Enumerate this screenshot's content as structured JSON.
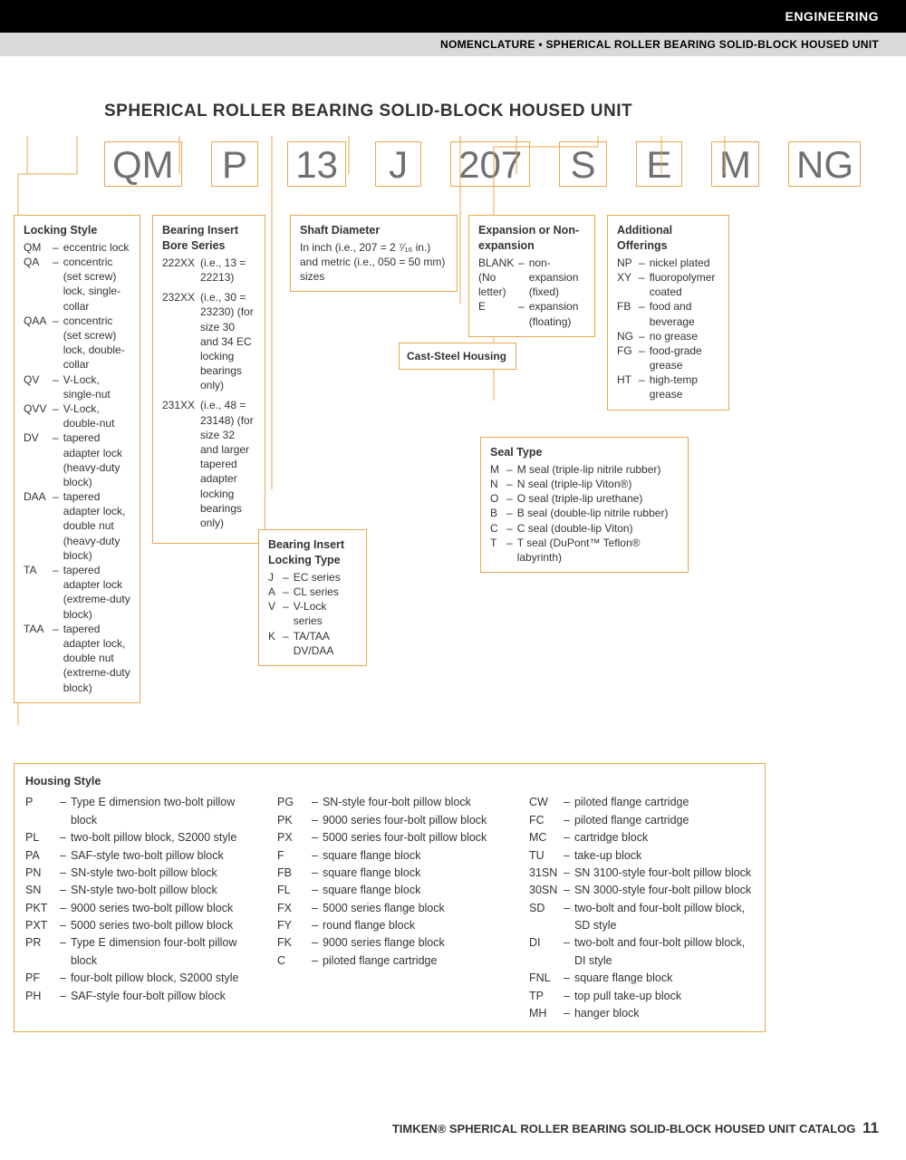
{
  "header": {
    "black": "ENGINEERING",
    "gray": "NOMENCLATURE • SPHERICAL ROLLER BEARING SOLID-BLOCK HOUSED UNIT"
  },
  "title": "SPHERICAL ROLLER BEARING SOLID-BLOCK HOUSED UNIT",
  "codes": [
    "QM",
    "P",
    "13",
    "J",
    "207",
    "S",
    "E",
    "M",
    "NG"
  ],
  "locking_style": {
    "title": "Locking Style",
    "items": [
      {
        "c": "QM",
        "d": "eccentric lock"
      },
      {
        "c": "QA",
        "d": "concentric (set screw) lock, single-collar"
      },
      {
        "c": "QAA",
        "d": "concentric (set screw) lock, double-collar"
      },
      {
        "c": "QV",
        "d": "V-Lock, single-nut"
      },
      {
        "c": "QVV",
        "d": "V-Lock, double-nut"
      },
      {
        "c": "DV",
        "d": "tapered adapter lock (heavy-duty block)"
      },
      {
        "c": "DAA",
        "d": "tapered adapter lock, double nut (heavy-duty block)"
      },
      {
        "c": "TA",
        "d": "tapered adapter lock (extreme-duty block)"
      },
      {
        "c": "TAA",
        "d": "tapered adapter lock, double nut (extreme-duty block)"
      }
    ]
  },
  "bore_series": {
    "title": "Bearing Insert Bore Series",
    "items": [
      {
        "c": "222XX",
        "d": "(i.e., 13 = 22213)"
      },
      {
        "c": "232XX",
        "d": "(i.e., 30 = 23230) (for size 30 and 34 EC locking bearings only)"
      },
      {
        "c": "231XX",
        "d": "(i.e., 48 = 23148) (for size 32 and larger tapered adapter locking bearings only)"
      }
    ]
  },
  "locking_type": {
    "title": "Bearing Insert Locking Type",
    "items": [
      {
        "c": "J",
        "d": "EC series"
      },
      {
        "c": "A",
        "d": "CL series"
      },
      {
        "c": "V",
        "d": "V-Lock series"
      },
      {
        "c": "K",
        "d": "TA/TAA DV/DAA"
      }
    ]
  },
  "shaft": {
    "title": "Shaft Diameter",
    "desc": "In inch (i.e., 207 = 2 ⁷⁄₁₆ in.) and metric (i.e., 050 = 50 mm) sizes"
  },
  "cast_steel": "Cast-Steel Housing",
  "expansion": {
    "title": "Expansion or Non-expansion",
    "items": [
      {
        "c": "BLANK (No letter)",
        "d": "non-expansion (fixed)"
      },
      {
        "c": "E",
        "d": "expansion (floating)"
      }
    ]
  },
  "seal": {
    "title": "Seal Type",
    "items": [
      {
        "c": "M",
        "d": "M seal (triple-lip nitrile rubber)"
      },
      {
        "c": "N",
        "d": "N seal (triple-lip Viton®)"
      },
      {
        "c": "O",
        "d": "O seal (triple-lip urethane)"
      },
      {
        "c": "B",
        "d": "B seal (double-lip nitrile rubber)"
      },
      {
        "c": "C",
        "d": "C seal (double-lip Viton)"
      },
      {
        "c": "T",
        "d": "T seal (DuPont™ Teflon® labyrinth)"
      }
    ]
  },
  "offerings": {
    "title": "Additional Offerings",
    "items": [
      {
        "c": "NP",
        "d": "nickel plated"
      },
      {
        "c": "XY",
        "d": "fluoropolymer coated"
      },
      {
        "c": "FB",
        "d": "food and beverage"
      },
      {
        "c": "NG",
        "d": "no grease"
      },
      {
        "c": "FG",
        "d": "food-grade grease"
      },
      {
        "c": "HT",
        "d": "high-temp grease"
      }
    ]
  },
  "housing": {
    "title": "Housing Style",
    "col1": [
      {
        "c": "P",
        "d": "Type E dimension two-bolt pillow block"
      },
      {
        "c": "PL",
        "d": "two-bolt pillow block, S2000 style"
      },
      {
        "c": "PA",
        "d": "SAF-style two-bolt pillow block"
      },
      {
        "c": "PN",
        "d": "SN-style two-bolt pillow block"
      },
      {
        "c": "SN",
        "d": "SN-style two-bolt pillow block"
      },
      {
        "c": "PKT",
        "d": "9000 series two-bolt pillow block"
      },
      {
        "c": "PXT",
        "d": "5000 series two-bolt pillow block"
      },
      {
        "c": "PR",
        "d": "Type E dimension four-bolt pillow block"
      },
      {
        "c": "PF",
        "d": "four-bolt pillow block, S2000 style"
      },
      {
        "c": "PH",
        "d": "SAF-style four-bolt pillow block"
      }
    ],
    "col2": [
      {
        "c": "PG",
        "d": "SN-style four-bolt pillow block"
      },
      {
        "c": "PK",
        "d": "9000 series four-bolt pillow block"
      },
      {
        "c": "PX",
        "d": "5000 series four-bolt pillow block"
      },
      {
        "c": "F",
        "d": "square flange block"
      },
      {
        "c": "FB",
        "d": "square flange block"
      },
      {
        "c": "FL",
        "d": "square flange block"
      },
      {
        "c": "FX",
        "d": "5000 series flange block"
      },
      {
        "c": "FY",
        "d": "round flange block"
      },
      {
        "c": "FK",
        "d": "9000 series flange block"
      },
      {
        "c": "C",
        "d": "piloted flange cartridge"
      }
    ],
    "col3": [
      {
        "c": "CW",
        "d": "piloted flange cartridge"
      },
      {
        "c": "FC",
        "d": "piloted flange cartridge"
      },
      {
        "c": "MC",
        "d": "cartridge block"
      },
      {
        "c": "TU",
        "d": "take-up block"
      },
      {
        "c": "31SN",
        "d": "SN 3100-style four-bolt pillow block"
      },
      {
        "c": "30SN",
        "d": "SN 3000-style four-bolt pillow block"
      },
      {
        "c": "SD",
        "d": "two-bolt and four-bolt pillow block, SD style"
      },
      {
        "c": "DI",
        "d": "two-bolt and four-bolt pillow block, DI style"
      },
      {
        "c": "FNL",
        "d": "square flange block"
      },
      {
        "c": "TP",
        "d": "top pull take-up block"
      },
      {
        "c": "MH",
        "d": "hanger block"
      }
    ]
  },
  "footer": {
    "text": "TIMKEN® SPHERICAL ROLLER BEARING SOLID-BLOCK HOUSED UNIT CATALOG",
    "page": "11"
  }
}
